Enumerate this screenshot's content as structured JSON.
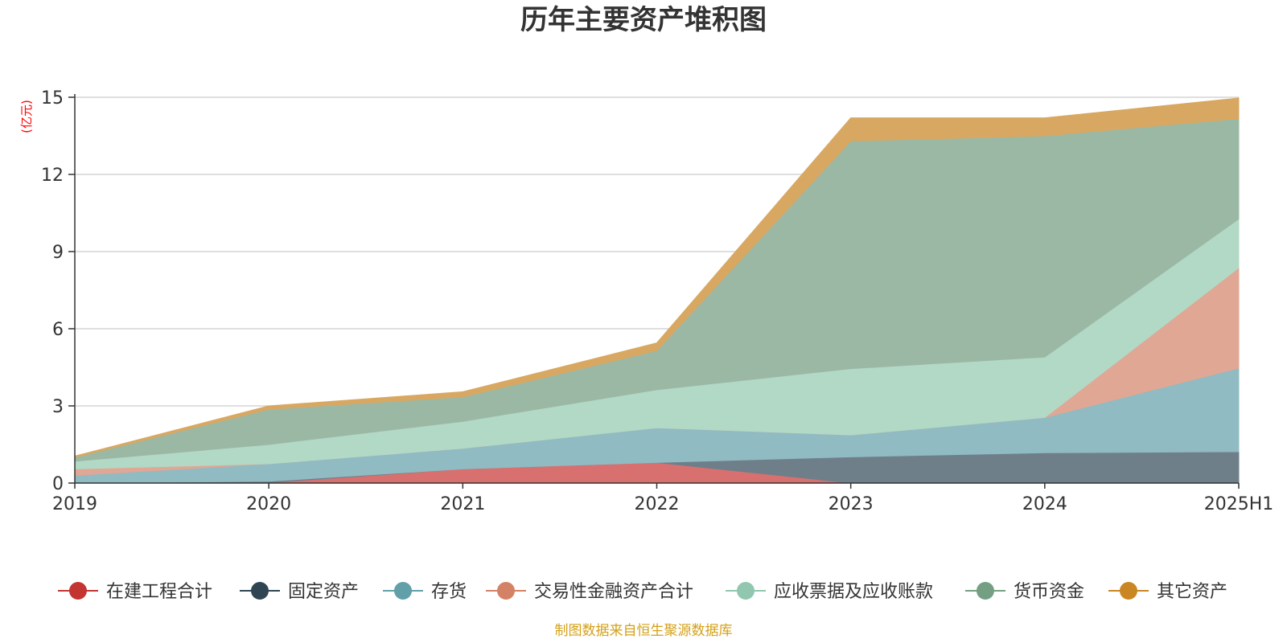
{
  "chart_data": {
    "type": "area",
    "stacked": true,
    "title": "历年主要资产堆积图",
    "unit_label": "(亿元)",
    "source_note": "制图数据来自恒生聚源数据库",
    "ylim": [
      0,
      15
    ],
    "yticks": [
      0,
      3,
      6,
      9,
      12,
      15
    ],
    "grid": true,
    "legend_position": "bottom",
    "categories": [
      "2019",
      "2020",
      "2021",
      "2022",
      "2023",
      "2024",
      "2025H1"
    ],
    "series": [
      {
        "name": "在建工程合计",
        "color": "#c23531",
        "fill": "#d97070",
        "values": [
          0.0,
          0.02,
          0.55,
          0.8,
          0.0,
          0.0,
          0.0
        ]
      },
      {
        "name": "固定资产",
        "color": "#2f4554",
        "fill": "#6f7f8a",
        "values": [
          0.0,
          0.05,
          0.0,
          0.0,
          1.02,
          1.18,
          1.22
        ]
      },
      {
        "name": "存货",
        "color": "#61a0a8",
        "fill": "#90bbc2",
        "values": [
          0.3,
          0.68,
          0.8,
          1.35,
          0.85,
          1.37,
          3.25
        ]
      },
      {
        "name": "交易性金融资产合计",
        "color": "#d48265",
        "fill": "#e0a794",
        "values": [
          0.25,
          0.0,
          0.0,
          0.0,
          0.0,
          0.0,
          3.9
        ]
      },
      {
        "name": "应收票据及应收账款",
        "color": "#91c7ae",
        "fill": "#b2d8c6",
        "values": [
          0.3,
          0.75,
          1.05,
          1.48,
          2.58,
          2.35,
          1.9
        ]
      },
      {
        "name": "货币资金",
        "color": "#749f83",
        "fill": "#9bb8a5",
        "values": [
          0.15,
          1.37,
          0.95,
          1.52,
          8.85,
          8.6,
          3.9
        ]
      },
      {
        "name": "其它资产",
        "color": "#ca8622",
        "fill": "#d8a862",
        "values": [
          0.05,
          0.13,
          0.2,
          0.3,
          0.9,
          0.7,
          0.8
        ]
      }
    ]
  }
}
